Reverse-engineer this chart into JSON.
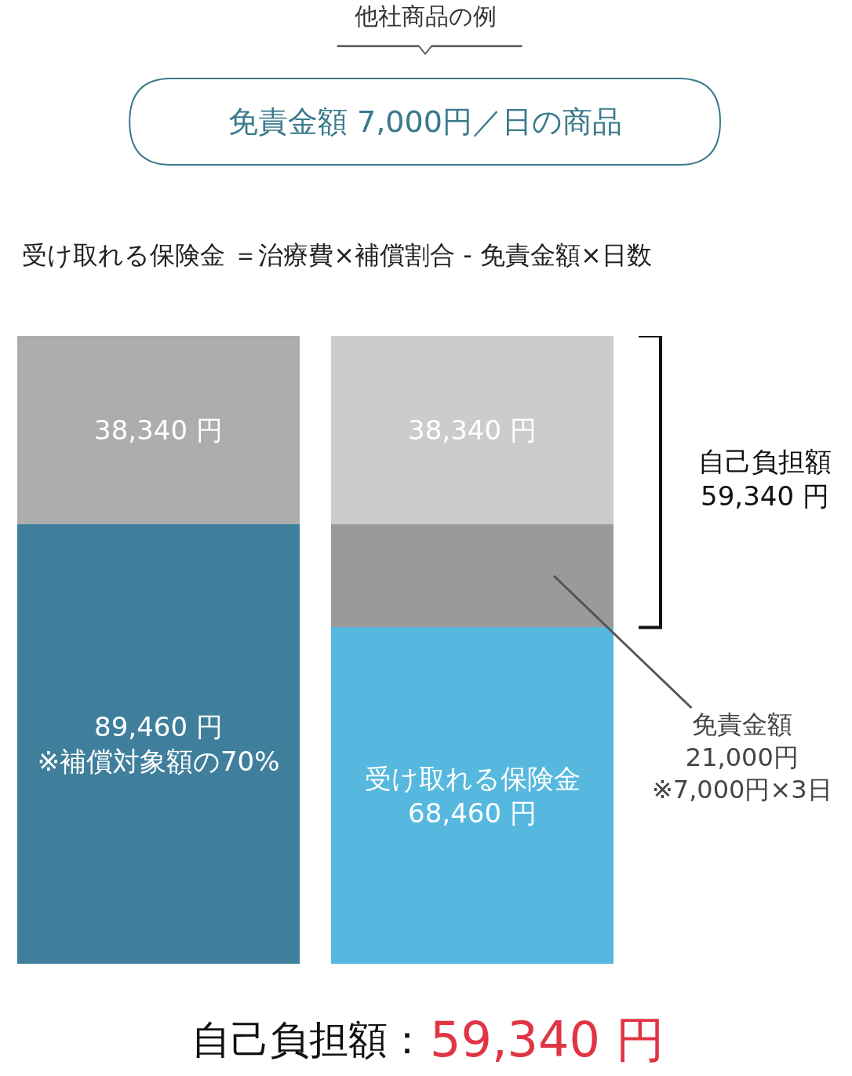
{
  "chart_data": {
    "type": "bar",
    "title": "他社商品の例",
    "subtitle": "免責金額 7,000円／日の商品",
    "categories": [
      null,
      null
    ],
    "stacked": true,
    "legend": false,
    "series": [
      {
        "colors": [
          "#3f7f9c",
          "#56b8de"
        ],
        "values": [
          89460,
          68460
        ],
        "value_labels": [
          "89,460 円\n※補償対象額の70%",
          "受け取れる保険金\n68,460 円"
        ]
      },
      {
        "colors": [
          "#9a9a9a",
          "#9a9a9a"
        ],
        "values": [
          null,
          21000
        ],
        "value_labels": [
          null,
          null
        ]
      },
      {
        "colors": [
          "#adadad",
          "#cccccc"
        ],
        "values": [
          38340,
          38340
        ],
        "value_labels": [
          "38,340 円",
          "38,340 円"
        ]
      }
    ],
    "annotations": [
      "受け取れる保険金 ＝治療費×補償割合 - 免責金額×日数",
      "自己負担額\n59,340 円",
      "免責金額\n21,000円\n※7,000円×3日",
      "自己負担額：",
      "59,340 円"
    ]
  }
}
